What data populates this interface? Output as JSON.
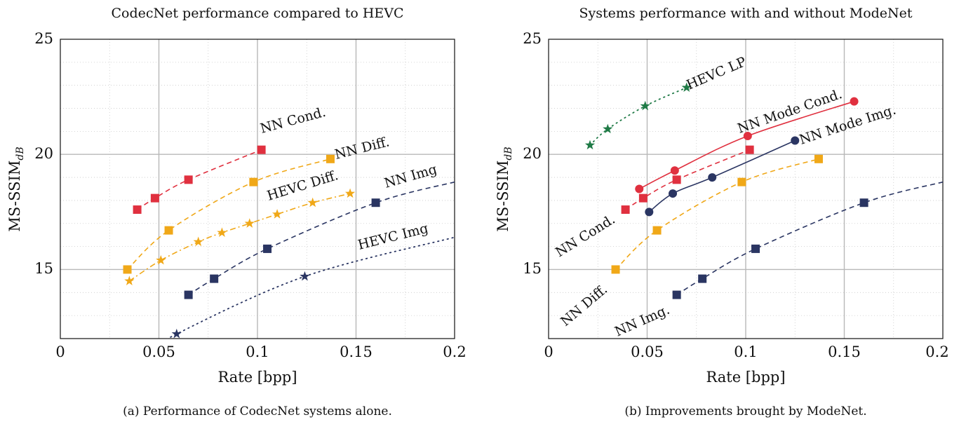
{
  "colors": {
    "nn_cond": "#e0303f",
    "nn_diff": "#f0a818",
    "nn_img": "#2a3562",
    "hevc_lp": "#1f7a46",
    "grid_major": "#b8b8b8",
    "grid_minor": "#c9c9c9"
  },
  "chart_data": [
    {
      "type": "line",
      "title": "CodecNet performance compared to HEVC",
      "caption": "(a) Performance of CodecNet systems alone.",
      "xlabel": "Rate [bpp]",
      "ylabel": "MS-SSIM",
      "ylabel_sub": "dB",
      "xlim": [
        0,
        0.2
      ],
      "ylim": [
        12,
        25
      ],
      "xticks": [
        "0",
        "0.05",
        "0.1",
        "0.15",
        "0.2"
      ],
      "yticks": [
        "15",
        "20",
        "25"
      ],
      "grid": true,
      "series": [
        {
          "name": "NN Cond.",
          "color_key": "nn_cond",
          "line": "dashed",
          "marker": "square",
          "x": [
            0.039,
            0.048,
            0.065,
            0.102
          ],
          "y": [
            17.6,
            18.1,
            18.9,
            20.2
          ]
        },
        {
          "name": "NN Diff.",
          "color_key": "nn_diff",
          "line": "dashed",
          "marker": "square",
          "x": [
            0.034,
            0.055,
            0.098,
            0.137
          ],
          "y": [
            15.0,
            16.7,
            18.8,
            19.8
          ]
        },
        {
          "name": "HEVC Diff.",
          "color_key": "nn_diff",
          "line": "dashdot",
          "marker": "star",
          "x": [
            0.035,
            0.051,
            0.07,
            0.082,
            0.096,
            0.11,
            0.128,
            0.147
          ],
          "y": [
            14.5,
            15.4,
            16.2,
            16.6,
            17.0,
            17.4,
            17.9,
            18.3
          ]
        },
        {
          "name": "NN Img",
          "color_key": "nn_img",
          "line": "dashed",
          "marker": "square",
          "x": [
            0.065,
            0.078,
            0.105,
            0.16
          ],
          "y": [
            13.9,
            14.6,
            15.9,
            17.9
          ],
          "extend_to": [
            0.2,
            18.8
          ]
        },
        {
          "name": "HEVC Img",
          "color_key": "nn_img",
          "line": "dotted",
          "marker": "star",
          "x": [
            0.059,
            0.124
          ],
          "y": [
            12.2,
            14.7
          ],
          "extend_from": [
            0.049,
            11.5
          ],
          "extend_to": [
            0.2,
            16.4
          ]
        }
      ]
    },
    {
      "type": "line",
      "title": "Systems performance with and without ModeNet",
      "caption": "(b) Improvements brought by ModeNet.",
      "xlabel": "Rate [bpp]",
      "ylabel": "MS-SSIM",
      "ylabel_sub": "dB",
      "xlim": [
        0,
        0.2
      ],
      "ylim": [
        12,
        25
      ],
      "xticks": [
        "0",
        "0.05",
        "0.1",
        "0.15",
        "0.2"
      ],
      "yticks": [
        "15",
        "20",
        "25"
      ],
      "grid": true,
      "series": [
        {
          "name": "HEVC LP",
          "color_key": "hevc_lp",
          "line": "dotted",
          "marker": "star",
          "x": [
            0.021,
            0.03,
            0.049,
            0.07
          ],
          "y": [
            20.4,
            21.1,
            22.1,
            22.9
          ]
        },
        {
          "name": "NN Mode Cond.",
          "color_key": "nn_cond",
          "line": "solid",
          "marker": "circle",
          "x": [
            0.046,
            0.064,
            0.101,
            0.155
          ],
          "y": [
            18.5,
            19.3,
            20.8,
            22.3
          ]
        },
        {
          "name": "NN Mode Img.",
          "color_key": "nn_img",
          "line": "solid",
          "marker": "circle",
          "x": [
            0.051,
            0.063,
            0.083,
            0.125
          ],
          "y": [
            17.5,
            18.3,
            19.0,
            20.6
          ]
        },
        {
          "name": "NN Cond.",
          "color_key": "nn_cond",
          "line": "dashed",
          "marker": "square",
          "x": [
            0.039,
            0.048,
            0.065,
            0.102
          ],
          "y": [
            17.6,
            18.1,
            18.9,
            20.2
          ]
        },
        {
          "name": "NN Diff.",
          "color_key": "nn_diff",
          "line": "dashed",
          "marker": "square",
          "x": [
            0.034,
            0.055,
            0.098,
            0.137
          ],
          "y": [
            15.0,
            16.7,
            18.8,
            19.8
          ]
        },
        {
          "name": "NN Img.",
          "color_key": "nn_img",
          "line": "dashed",
          "marker": "square",
          "x": [
            0.065,
            0.078,
            0.105,
            0.16
          ],
          "y": [
            13.9,
            14.6,
            15.9,
            17.9
          ],
          "extend_to": [
            0.2,
            18.8
          ]
        }
      ]
    }
  ]
}
